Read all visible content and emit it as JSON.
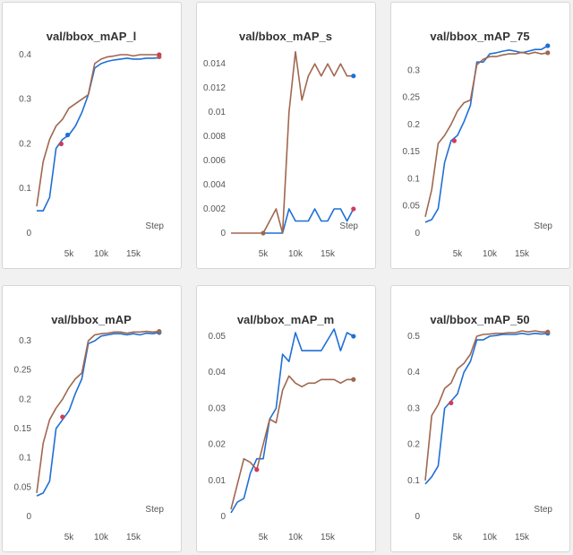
{
  "colors": {
    "series_a": "#1f6fd6",
    "series_b": "#a0674f",
    "marker_a": "#ce3d5b"
  },
  "chart_data": [
    {
      "type": "line",
      "title": "val/bbox_mAP_l",
      "xlabel": "Step",
      "xlim": [
        0,
        20000
      ],
      "ylim": [
        0,
        0.42
      ],
      "xticks": [
        5000,
        10000,
        15000
      ],
      "xtick_labels": [
        "5k",
        "10k",
        "15k"
      ],
      "yticks": [
        0,
        0.1,
        0.2,
        0.3,
        0.4
      ],
      "ytick_labels": [
        "0",
        "0.1",
        "0.2",
        "0.3",
        "0.4"
      ],
      "series": [
        {
          "x": [
            0,
            1000,
            2000,
            3000,
            4000,
            5000,
            6000,
            7000,
            8000,
            9000,
            10000,
            11000,
            12000,
            13000,
            14000,
            15000,
            16000,
            17000,
            18000,
            19000
          ],
          "y": [
            0.05,
            0.05,
            0.08,
            0.19,
            0.21,
            0.22,
            0.24,
            0.27,
            0.31,
            0.37,
            0.38,
            0.385,
            0.388,
            0.39,
            0.392,
            0.39,
            0.39,
            0.392,
            0.392,
            0.393
          ]
        },
        {
          "x": [
            0,
            1000,
            2000,
            3000,
            4000,
            5000,
            6000,
            7000,
            8000,
            9000,
            10000,
            11000,
            12000,
            13000,
            14000,
            15000,
            16000,
            17000,
            18000,
            19000
          ],
          "y": [
            0.06,
            0.16,
            0.21,
            0.24,
            0.255,
            0.28,
            0.29,
            0.3,
            0.31,
            0.38,
            0.39,
            0.395,
            0.397,
            0.4,
            0.4,
            0.397,
            0.4,
            0.4,
            0.4,
            0.4
          ]
        }
      ],
      "markers": [
        {
          "x": 3800,
          "y": 0.2
        },
        {
          "x": 4800,
          "y": 0.22
        },
        {
          "x": 19000,
          "y": 0.395
        },
        {
          "x": 19000,
          "y": 0.4
        }
      ]
    },
    {
      "type": "line",
      "title": "val/bbox_mAP_s",
      "xlabel": "Step",
      "xlim": [
        0,
        20000
      ],
      "ylim": [
        0,
        0.0155
      ],
      "xticks": [
        5000,
        10000,
        15000
      ],
      "xtick_labels": [
        "5k",
        "10k",
        "15k"
      ],
      "yticks": [
        0,
        0.002,
        0.004,
        0.006,
        0.008,
        0.01,
        0.012,
        0.014
      ],
      "ytick_labels": [
        "0",
        "0.002",
        "0.004",
        "0.006",
        "0.008",
        "0.01",
        "0.012",
        "0.014"
      ],
      "series": [
        {
          "x": [
            5000,
            6000,
            7000,
            8000,
            9000,
            10000,
            11000,
            12000,
            13000,
            14000,
            15000,
            16000,
            17000,
            18000,
            19000
          ],
          "y": [
            0,
            0,
            0,
            0,
            0.002,
            0.001,
            0.001,
            0.001,
            0.002,
            0.001,
            0.001,
            0.002,
            0.002,
            0.001,
            0.002
          ]
        },
        {
          "x": [
            0,
            5000,
            6000,
            7000,
            8000,
            9000,
            10000,
            11000,
            12000,
            13000,
            14000,
            15000,
            16000,
            17000,
            18000,
            19000
          ],
          "y": [
            0,
            0,
            0.001,
            0.002,
            0,
            0.01,
            0.015,
            0.011,
            0.013,
            0.014,
            0.013,
            0.014,
            0.013,
            0.014,
            0.013,
            0.013
          ]
        }
      ],
      "markers": [
        {
          "x": 19000,
          "y": 0.002
        },
        {
          "x": 19000,
          "y": 0.013
        },
        {
          "x": 5000,
          "y": 0
        }
      ]
    },
    {
      "type": "line",
      "title": "val/bbox_mAP_75",
      "xlabel": "Step",
      "xlim": [
        0,
        20000
      ],
      "ylim": [
        0,
        0.345
      ],
      "xticks": [
        5000,
        10000,
        15000
      ],
      "xtick_labels": [
        "5k",
        "10k",
        "15k"
      ],
      "yticks": [
        0,
        0.05,
        0.1,
        0.15,
        0.2,
        0.25,
        0.3
      ],
      "ytick_labels": [
        "0",
        "0.05",
        "0.1",
        "0.15",
        "0.2",
        "0.25",
        "0.3"
      ],
      "series": [
        {
          "x": [
            0,
            1000,
            2000,
            3000,
            4000,
            5000,
            6000,
            7000,
            8000,
            9000,
            10000,
            11000,
            12000,
            13000,
            14000,
            15000,
            16000,
            17000,
            18000,
            19000
          ],
          "y": [
            0.02,
            0.025,
            0.045,
            0.13,
            0.17,
            0.18,
            0.205,
            0.235,
            0.315,
            0.315,
            0.33,
            0.332,
            0.335,
            0.337,
            0.335,
            0.332,
            0.335,
            0.338,
            0.338,
            0.345
          ]
        },
        {
          "x": [
            0,
            1000,
            2000,
            3000,
            4000,
            5000,
            6000,
            7000,
            8000,
            9000,
            10000,
            11000,
            12000,
            13000,
            14000,
            15000,
            16000,
            17000,
            18000,
            19000
          ],
          "y": [
            0.03,
            0.08,
            0.165,
            0.18,
            0.2,
            0.225,
            0.24,
            0.245,
            0.31,
            0.32,
            0.325,
            0.325,
            0.328,
            0.33,
            0.33,
            0.333,
            0.33,
            0.333,
            0.33,
            0.332
          ]
        }
      ],
      "markers": [
        {
          "x": 4500,
          "y": 0.17
        },
        {
          "x": 19000,
          "y": 0.345
        },
        {
          "x": 19000,
          "y": 0.332
        }
      ]
    },
    {
      "type": "line",
      "title": "val/bbox_mAP",
      "xlabel": "Step",
      "xlim": [
        0,
        20000
      ],
      "ylim": [
        0,
        0.32
      ],
      "xticks": [
        5000,
        10000,
        15000
      ],
      "xtick_labels": [
        "5k",
        "10k",
        "15k"
      ],
      "yticks": [
        0,
        0.05,
        0.1,
        0.15,
        0.2,
        0.25,
        0.3
      ],
      "ytick_labels": [
        "0",
        "0.05",
        "0.1",
        "0.15",
        "0.2",
        "0.25",
        "0.3"
      ],
      "series": [
        {
          "x": [
            0,
            1000,
            2000,
            3000,
            4000,
            5000,
            6000,
            7000,
            8000,
            9000,
            10000,
            11000,
            12000,
            13000,
            14000,
            15000,
            16000,
            17000,
            18000,
            19000
          ],
          "y": [
            0.035,
            0.04,
            0.06,
            0.15,
            0.165,
            0.18,
            0.21,
            0.235,
            0.295,
            0.3,
            0.308,
            0.31,
            0.312,
            0.312,
            0.31,
            0.312,
            0.31,
            0.313,
            0.312,
            0.314
          ]
        },
        {
          "x": [
            0,
            1000,
            2000,
            3000,
            4000,
            5000,
            6000,
            7000,
            8000,
            9000,
            10000,
            11000,
            12000,
            13000,
            14000,
            15000,
            16000,
            17000,
            18000,
            19000
          ],
          "y": [
            0.04,
            0.125,
            0.165,
            0.185,
            0.2,
            0.22,
            0.235,
            0.245,
            0.3,
            0.31,
            0.312,
            0.313,
            0.315,
            0.315,
            0.313,
            0.315,
            0.315,
            0.316,
            0.315,
            0.316
          ]
        }
      ],
      "markers": [
        {
          "x": 4000,
          "y": 0.17
        },
        {
          "x": 19000,
          "y": 0.314
        },
        {
          "x": 19000,
          "y": 0.316
        }
      ]
    },
    {
      "type": "line",
      "title": "val/bbox_mAP_m",
      "xlabel": "",
      "xlim": [
        0,
        20000
      ],
      "ylim": [
        0,
        0.052
      ],
      "xticks": [
        5000,
        10000,
        15000
      ],
      "xtick_labels": [
        "5k",
        "10k",
        "15k"
      ],
      "yticks": [
        0,
        0.01,
        0.02,
        0.03,
        0.04,
        0.05
      ],
      "ytick_labels": [
        "0",
        "0.01",
        "0.02",
        "0.03",
        "0.04",
        "0.05"
      ],
      "series": [
        {
          "x": [
            0,
            1000,
            2000,
            3000,
            4000,
            5000,
            6000,
            7000,
            8000,
            9000,
            10000,
            11000,
            12000,
            13000,
            14000,
            15000,
            16000,
            17000,
            18000,
            19000
          ],
          "y": [
            0.001,
            0.004,
            0.005,
            0.012,
            0.016,
            0.016,
            0.027,
            0.03,
            0.045,
            0.043,
            0.051,
            0.046,
            0.046,
            0.046,
            0.046,
            0.049,
            0.052,
            0.046,
            0.051,
            0.05
          ]
        },
        {
          "x": [
            0,
            1000,
            2000,
            3000,
            4000,
            5000,
            6000,
            7000,
            8000,
            9000,
            10000,
            11000,
            12000,
            13000,
            14000,
            15000,
            16000,
            17000,
            18000,
            19000
          ],
          "y": [
            0.002,
            0.009,
            0.016,
            0.015,
            0.013,
            0.02,
            0.027,
            0.026,
            0.035,
            0.039,
            0.037,
            0.036,
            0.037,
            0.037,
            0.038,
            0.038,
            0.038,
            0.037,
            0.038,
            0.038
          ]
        }
      ],
      "markers": [
        {
          "x": 4000,
          "y": 0.013
        },
        {
          "x": 19000,
          "y": 0.05
        },
        {
          "x": 19000,
          "y": 0.038
        }
      ]
    },
    {
      "type": "line",
      "title": "val/bbox_mAP_50",
      "xlabel": "Step",
      "xlim": [
        0,
        20000
      ],
      "ylim": [
        0,
        0.52
      ],
      "xticks": [
        5000,
        10000,
        15000
      ],
      "xtick_labels": [
        "5k",
        "10k",
        "15k"
      ],
      "yticks": [
        0,
        0.1,
        0.2,
        0.3,
        0.4,
        0.5
      ],
      "ytick_labels": [
        "0",
        "0.1",
        "0.2",
        "0.3",
        "0.4",
        "0.5"
      ],
      "series": [
        {
          "x": [
            0,
            1000,
            2000,
            3000,
            4000,
            5000,
            6000,
            7000,
            8000,
            9000,
            10000,
            11000,
            12000,
            13000,
            14000,
            15000,
            16000,
            17000,
            18000,
            19000
          ],
          "y": [
            0.09,
            0.11,
            0.14,
            0.3,
            0.32,
            0.34,
            0.4,
            0.43,
            0.49,
            0.49,
            0.5,
            0.502,
            0.505,
            0.505,
            0.505,
            0.508,
            0.505,
            0.508,
            0.506,
            0.508
          ]
        },
        {
          "x": [
            0,
            1000,
            2000,
            3000,
            4000,
            5000,
            6000,
            7000,
            8000,
            9000,
            10000,
            11000,
            12000,
            13000,
            14000,
            15000,
            16000,
            17000,
            18000,
            19000
          ],
          "y": [
            0.1,
            0.28,
            0.31,
            0.355,
            0.37,
            0.41,
            0.425,
            0.45,
            0.5,
            0.505,
            0.506,
            0.508,
            0.508,
            0.51,
            0.51,
            0.515,
            0.512,
            0.515,
            0.512,
            0.512
          ]
        }
      ],
      "markers": [
        {
          "x": 4000,
          "y": 0.315
        },
        {
          "x": 19000,
          "y": 0.508
        },
        {
          "x": 19000,
          "y": 0.512
        }
      ]
    }
  ]
}
